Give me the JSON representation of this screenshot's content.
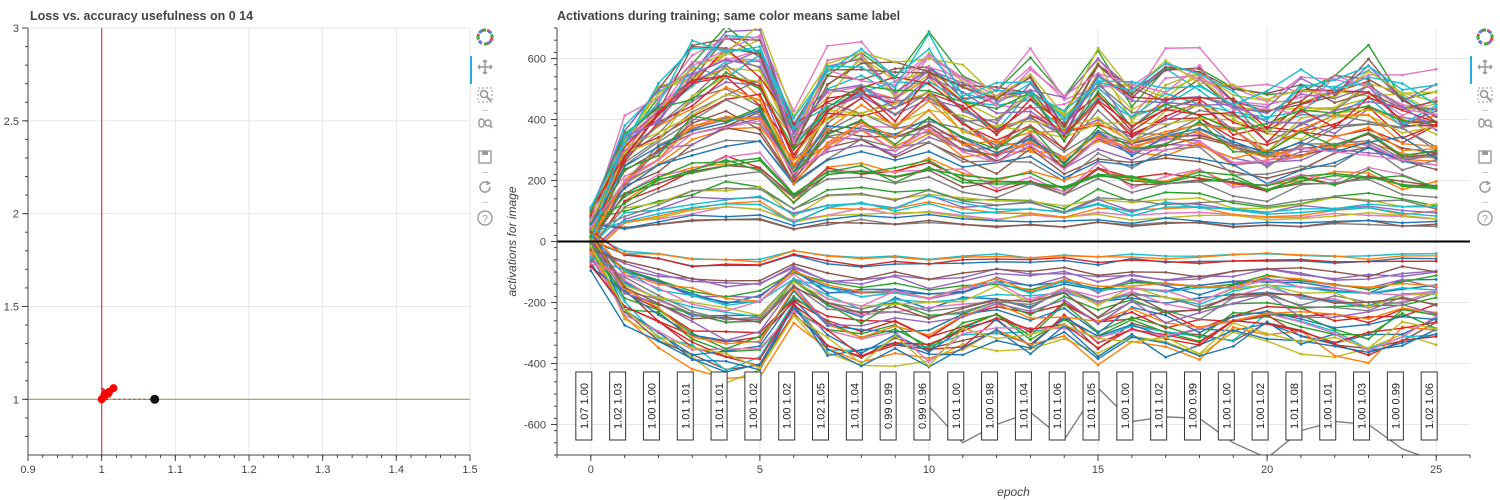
{
  "colors": {
    "grid": "#e6e6e6",
    "axis": "#444444",
    "vline": "#e04040",
    "hline": "#a0a060",
    "series_palette": [
      "#1f77b4",
      "#ff7f0e",
      "#2ca02c",
      "#d62728",
      "#9467bd",
      "#8c564b",
      "#e377c2",
      "#7f7f7f",
      "#bcbd22",
      "#17becf"
    ],
    "tool_active": "#26aae1",
    "tool_icon": "#999999"
  },
  "toolbar_tools": [
    "bokeh-logo-icon",
    "pan-icon",
    "box-zoom-icon",
    "wheel-zoom-icon",
    "save-icon",
    "reset-icon",
    "help-icon"
  ],
  "chart_data": [
    {
      "type": "scatter",
      "title": "Loss vs. accuracy usefulness on 0 14",
      "xlabel": "",
      "ylabel": "",
      "xlim": [
        0.9,
        1.5
      ],
      "ylim": [
        0.7,
        3.0
      ],
      "xticks": [
        0.9,
        1.0,
        1.1,
        1.2,
        1.3,
        1.4,
        1.5
      ],
      "xtick_labels": [
        "0.9",
        "1",
        "1.1",
        "1.2",
        "1.3",
        "1.4",
        "1.5"
      ],
      "yticks": [
        1.0,
        1.5,
        2.0,
        2.5,
        3.0
      ],
      "ytick_labels": [
        "1",
        "1.5",
        "2",
        "2.5",
        "3"
      ],
      "reference_lines": {
        "x": 1.0,
        "y": 1.0
      },
      "trajectory": {
        "x": [
          1.0,
          1.005,
          0.998,
          1.012,
          1.003,
          1.008,
          0.999,
          1.015,
          1.004,
          1.01,
          1.001,
          1.006,
          1.002,
          1.013,
          1.007,
          1.0
        ],
        "y": [
          1.0,
          1.02,
          1.03,
          1.01,
          1.05,
          1.0,
          1.02,
          1.04,
          0.99,
          1.03,
          1.06,
          1.01,
          1.0,
          1.02,
          1.04,
          1.0
        ]
      },
      "red_points": [
        {
          "x": 1.0,
          "y": 1.0
        },
        {
          "x": 1.005,
          "y": 1.03
        },
        {
          "x": 1.01,
          "y": 1.04
        },
        {
          "x": 1.016,
          "y": 1.06
        }
      ],
      "black_point": {
        "x": 1.072,
        "y": 1.0
      },
      "dotted_link": {
        "x": [
          1.016,
          1.072
        ],
        "y": [
          1.0,
          1.0
        ]
      }
    },
    {
      "type": "line",
      "title": "Activations during training; same color means same label",
      "xlabel": "epoch",
      "ylabel": "activations for image",
      "xlim": [
        -1,
        26
      ],
      "ylim": [
        -700,
        700
      ],
      "xticks": [
        0,
        5,
        10,
        15,
        20,
        25
      ],
      "xtick_labels": [
        "0",
        "5",
        "10",
        "15",
        "20",
        "25"
      ],
      "yticks": [
        -600,
        -400,
        -200,
        0,
        200,
        400,
        600
      ],
      "ytick_labels": [
        "-600",
        "-400",
        "-200",
        "0",
        "200",
        "400",
        "600"
      ],
      "zero_line": 0,
      "n_series": 110,
      "epochs": [
        0,
        1,
        2,
        3,
        4,
        5,
        6,
        7,
        8,
        9,
        10,
        11,
        12,
        13,
        14,
        15,
        16,
        17,
        18,
        19,
        20,
        21,
        22,
        23,
        24,
        25
      ],
      "box_epochs": [
        0,
        1,
        2,
        3,
        4,
        5,
        6,
        7,
        8,
        9,
        10,
        11,
        12,
        13,
        14,
        15,
        16,
        17,
        18,
        19,
        20,
        21,
        22,
        23,
        24,
        25
      ],
      "box_labels": [
        "1.07   1.00",
        "1.02   1.03",
        "1.00   1.00",
        "1.01   1.01",
        "1.01   1.01",
        "1.00   1.02",
        "1.00   1.02",
        "1.02   1.05",
        "1.01   1.04",
        "0.99   0.99",
        "0.99   0.96",
        "1.01   1.00",
        "1.00   0.98",
        "1.01   1.04",
        "1.01   1.06",
        "1.01   1.05",
        "1.00   1.00",
        "1.01   1.02",
        "1.00   0.99",
        "1.00   1.00",
        "1.00   1.02",
        "1.01   1.08",
        "1.00   1.01",
        "1.00   1.03",
        "1.00   0.99",
        "1.02   1.06"
      ],
      "outlier_series": {
        "epochs": [
          10,
          11,
          12,
          13,
          14,
          15,
          16,
          17,
          18,
          19,
          20,
          21,
          22,
          23,
          24,
          25
        ],
        "values": [
          -540,
          -660,
          -600,
          -560,
          -650,
          -480,
          -590,
          -575,
          -580,
          -660,
          -710,
          -620,
          -590,
          -600,
          -680,
          -720
        ]
      }
    }
  ]
}
